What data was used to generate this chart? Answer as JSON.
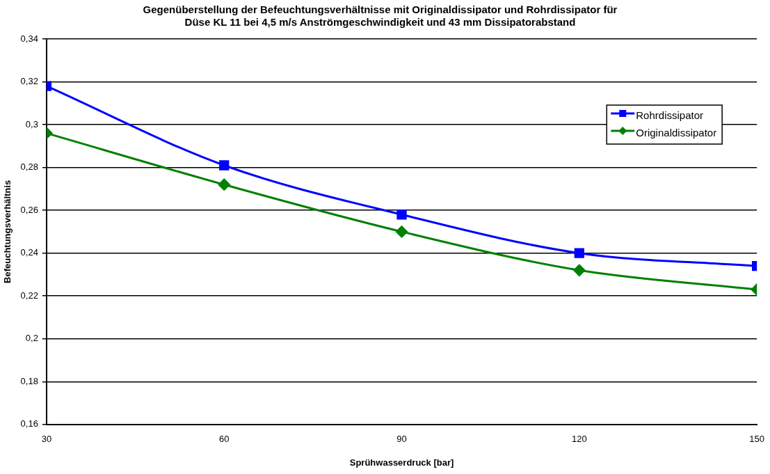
{
  "chart_data": {
    "type": "line",
    "title": [
      "Gegenüberstellung der Befeuchtungsverhältnisse mit Originaldissipator und Rohrdissipator für",
      "Düse KL 11 bei 4,5 m/s Anströmgeschwindigkeit und 43 mm Dissipatorabstand"
    ],
    "xlabel": "Sprühwasserdruck [bar]",
    "ylabel": "Befeuchtungsverhältnis",
    "x": [
      30,
      60,
      90,
      120,
      150
    ],
    "series": [
      {
        "name": "Rohrdissipator",
        "color": "#0000ff",
        "marker": "square",
        "values": [
          0.318,
          0.281,
          0.258,
          0.24,
          0.234
        ]
      },
      {
        "name": "Originaldissipator",
        "color": "#008000",
        "marker": "diamond",
        "values": [
          0.296,
          0.272,
          0.25,
          0.232,
          0.223
        ]
      }
    ],
    "xlim": [
      30,
      150
    ],
    "xticks": [
      30,
      60,
      90,
      120,
      150
    ],
    "ylim": [
      0.16,
      0.34
    ],
    "yticks": [
      {
        "value": 0.16,
        "label": "0,16"
      },
      {
        "value": 0.18,
        "label": "0,18"
      },
      {
        "value": 0.2,
        "label": "0,2"
      },
      {
        "value": 0.22,
        "label": "0,22"
      },
      {
        "value": 0.24,
        "label": "0,24"
      },
      {
        "value": 0.26,
        "label": "0,26"
      },
      {
        "value": 0.28,
        "label": "0,28"
      },
      {
        "value": 0.3,
        "label": "0,3"
      },
      {
        "value": 0.32,
        "label": "0,32"
      },
      {
        "value": 0.34,
        "label": "0,34"
      }
    ],
    "grid": "y",
    "legend": "top right"
  }
}
